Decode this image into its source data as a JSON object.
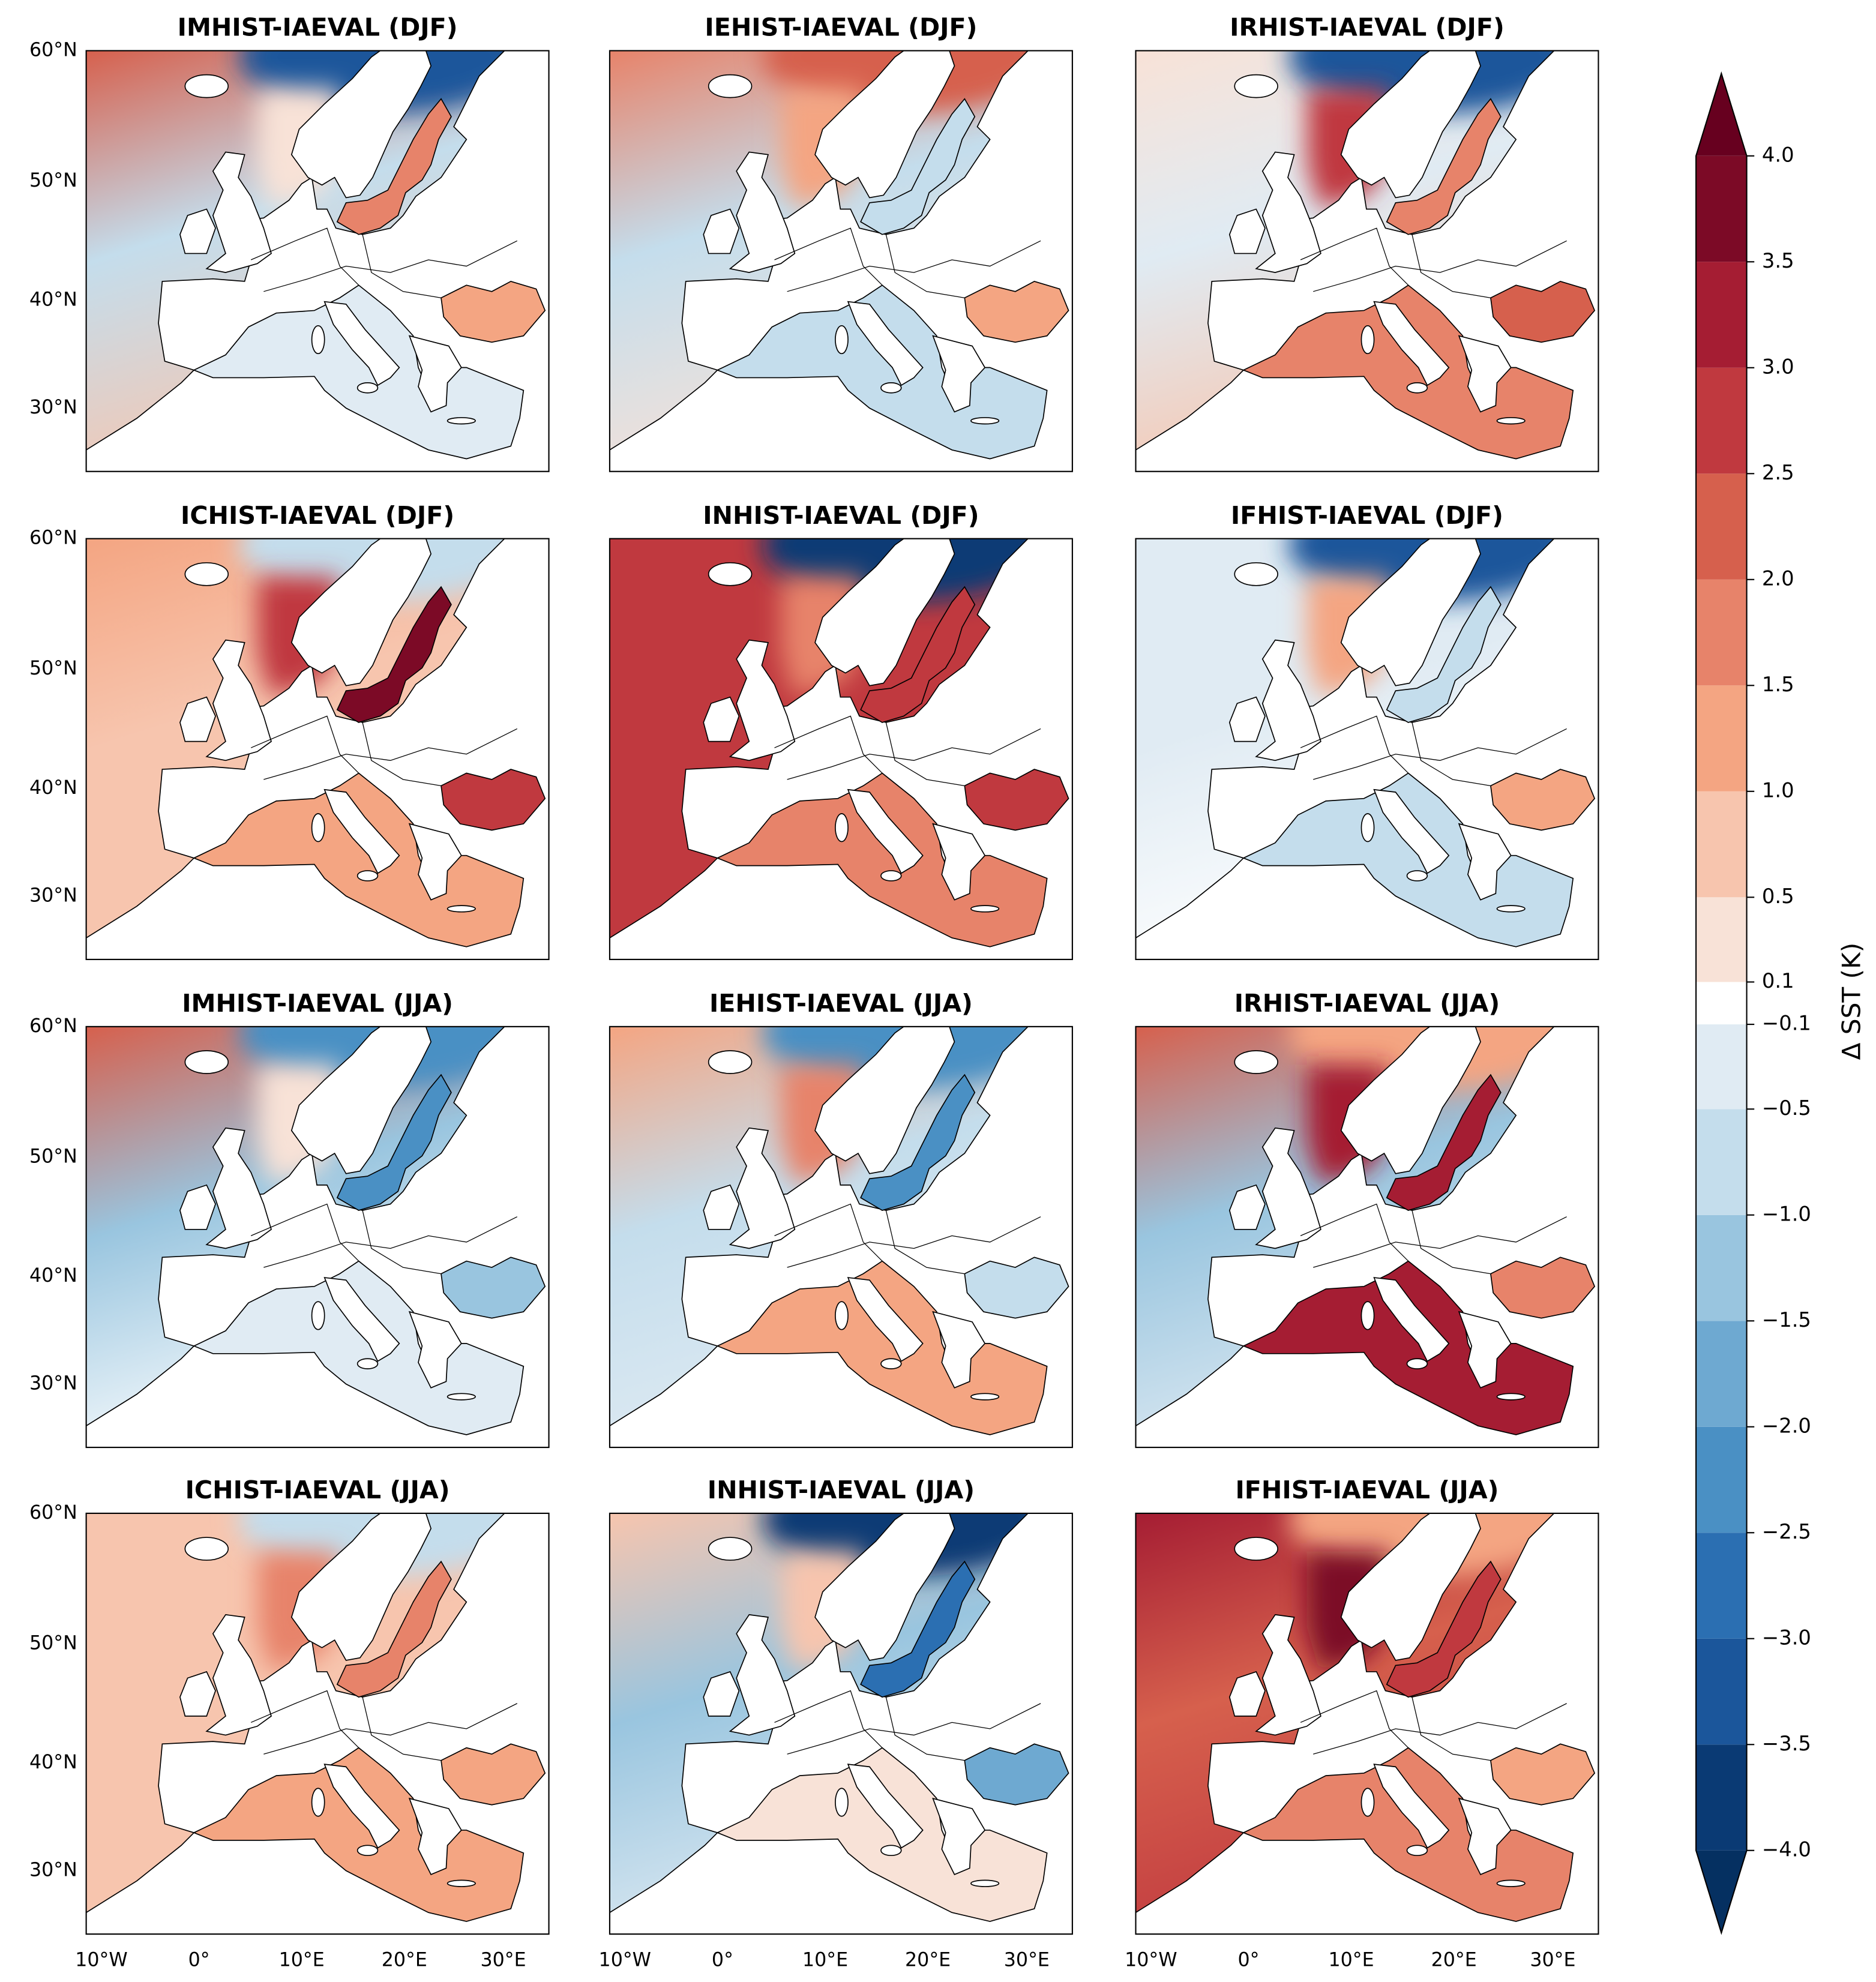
{
  "panels": [
    {
      "title": "IMHIST-IAEVAL (DJF)"
    },
    {
      "title": "IEHIST-IAEVAL (DJF)"
    },
    {
      "title": "IRHIST-IAEVAL (DJF)"
    },
    {
      "title": "ICHIST-IAEVAL (DJF)"
    },
    {
      "title": "INHIST-IAEVAL (DJF)"
    },
    {
      "title": "IFHIST-IAEVAL (DJF)"
    },
    {
      "title": "IMHIST-IAEVAL (JJA)"
    },
    {
      "title": "IEHIST-IAEVAL (JJA)"
    },
    {
      "title": "IRHIST-IAEVAL (JJA)"
    },
    {
      "title": "ICHIST-IAEVAL (JJA)"
    },
    {
      "title": "INHIST-IAEVAL (JJA)"
    },
    {
      "title": "IFHIST-IAEVAL (JJA)"
    }
  ],
  "lat_labels": [
    "60°N",
    "50°N",
    "40°N",
    "30°N"
  ],
  "lon_labels": [
    "10°W",
    "0°",
    "10°E",
    "20°E",
    "30°E"
  ],
  "colorbar": {
    "label": "Δ SST (K)",
    "lim": [
      -4,
      4
    ],
    "ticks": [
      {
        "value": -4,
        "label": "−4.0"
      },
      {
        "value": -3.5,
        "label": "−3.5"
      },
      {
        "value": -3,
        "label": "−3.0"
      },
      {
        "value": -2.5,
        "label": "−2.5"
      },
      {
        "value": -2,
        "label": "−2.0"
      },
      {
        "value": -1.5,
        "label": "−1.5"
      },
      {
        "value": -1,
        "label": "−1.0"
      },
      {
        "value": -0.5,
        "label": "−0.5"
      },
      {
        "value": -0.1,
        "label": "−0.1"
      },
      {
        "value": 0.1,
        "label": "0.1"
      },
      {
        "value": 0.5,
        "label": "0.5"
      },
      {
        "value": 1,
        "label": "1.0"
      },
      {
        "value": 1.5,
        "label": "1.5"
      },
      {
        "value": 2,
        "label": "2.0"
      },
      {
        "value": 2.5,
        "label": "2.5"
      },
      {
        "value": 3,
        "label": "3.0"
      },
      {
        "value": 3.5,
        "label": "3.5"
      },
      {
        "value": 4,
        "label": "4.0"
      }
    ],
    "colors": [
      "#0a3a74",
      "#1b569b",
      "#2b6fb2",
      "#4a90c4",
      "#6ea9d1",
      "#99c5df",
      "#c4ddec",
      "#e0ebf3",
      "#ffffff",
      "#f8e2d7",
      "#f7c5ae",
      "#f4a582",
      "#e7836a",
      "#d6604d",
      "#c0393f",
      "#a51d33",
      "#7c0a26"
    ],
    "under_color": "#053061",
    "over_color": "#67001f"
  }
}
